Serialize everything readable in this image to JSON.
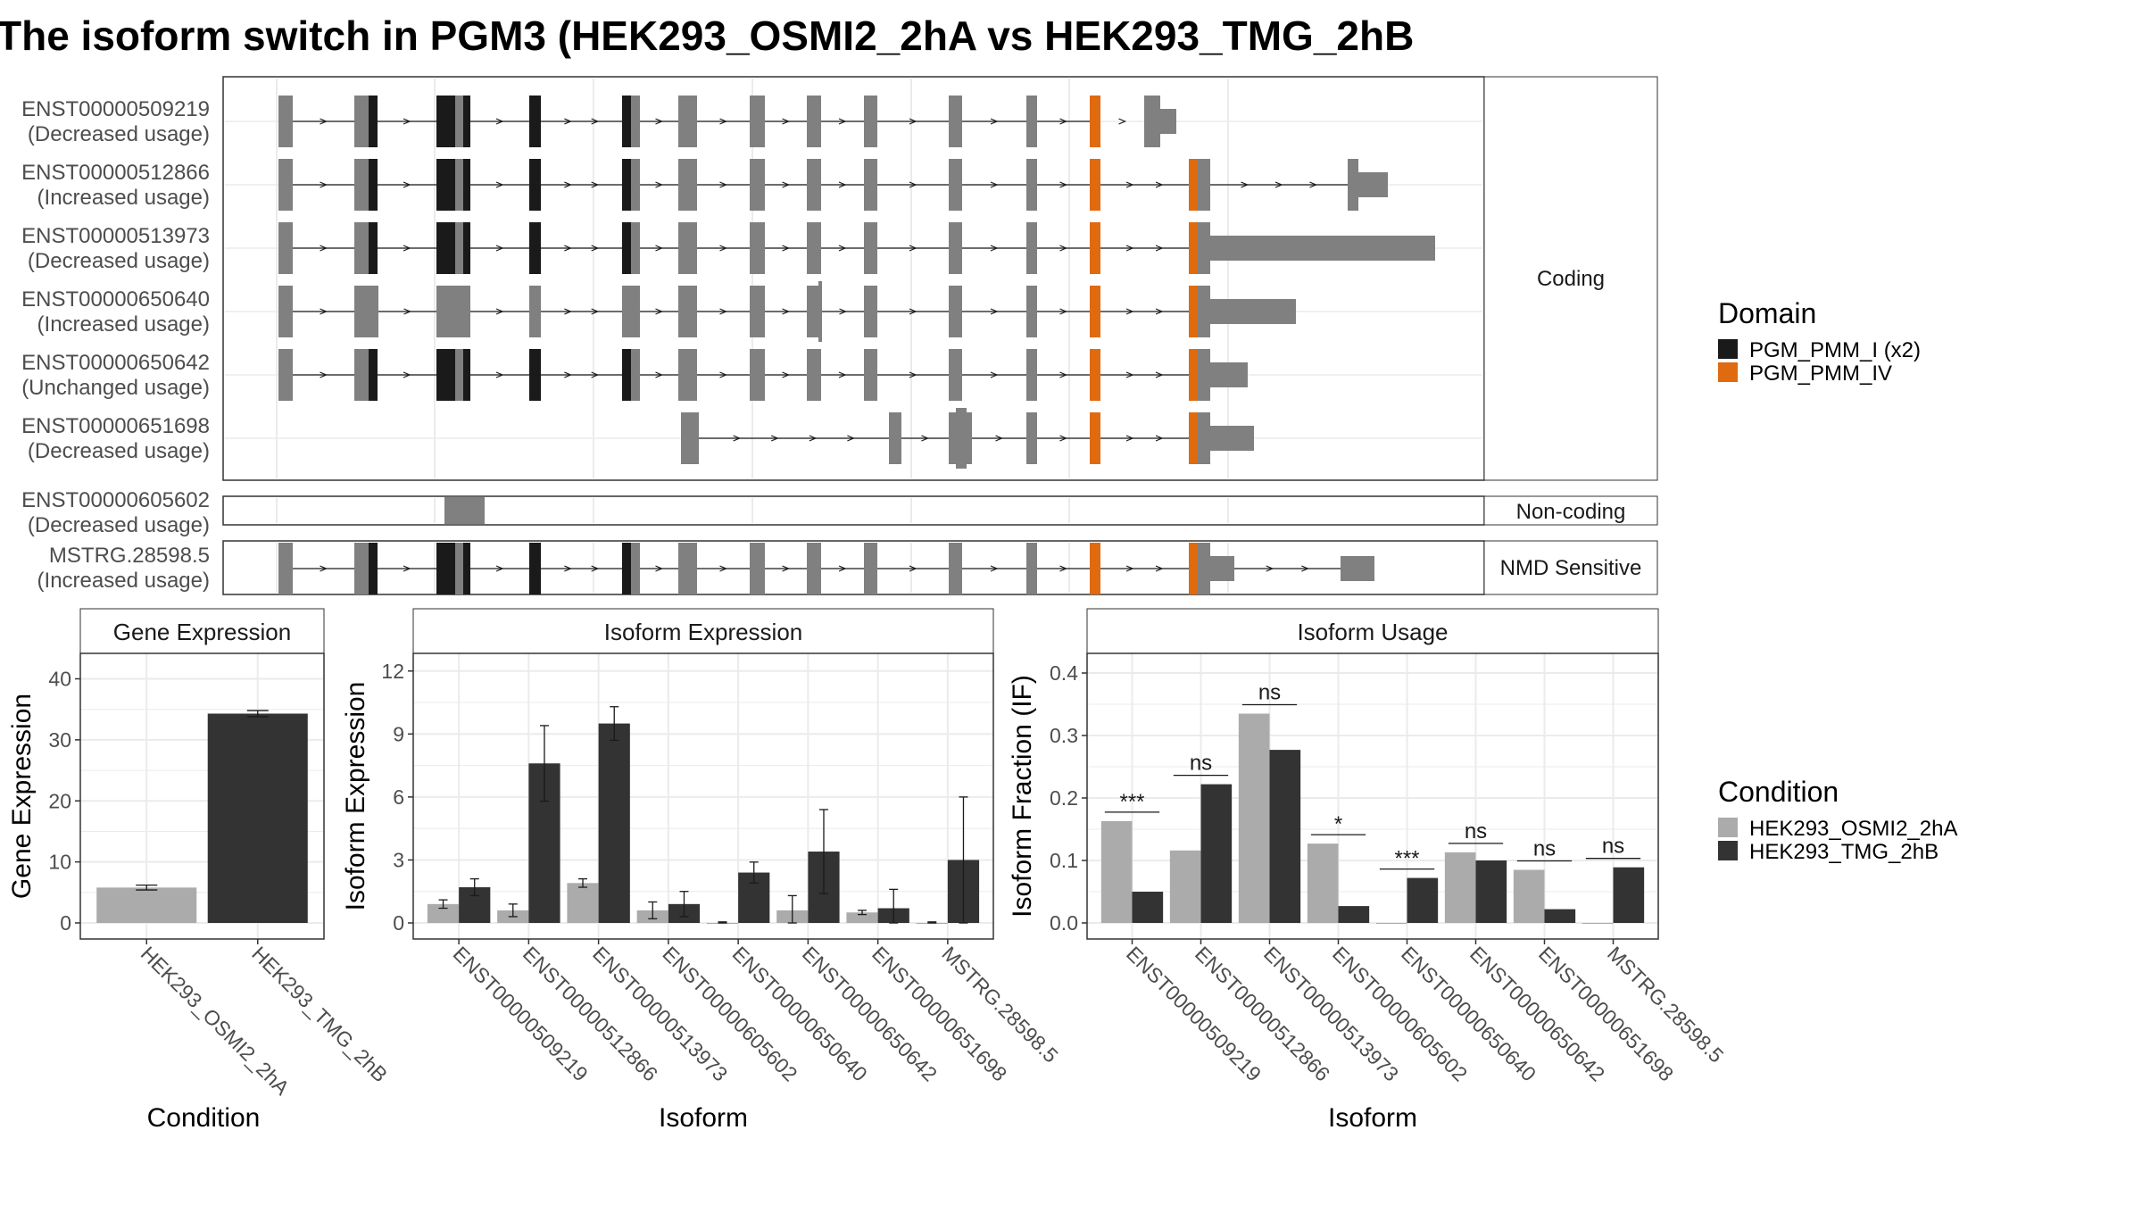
{
  "title": "The isoform switch in PGM3 (HEK293_OSMI2_2hA vs HEK293_TMG_2hB",
  "colors": {
    "exon": "#808080",
    "domain_pgm_pmm_i": "#1a1a1a",
    "domain_pgm_pmm_iv": "#e06a10",
    "cond_a": "#ababab",
    "cond_b": "#333333",
    "grid": "#ebebeb",
    "strip_border": "#333333"
  },
  "structure": {
    "panels": [
      "Coding",
      "Non-coding",
      "NMD Sensitive"
    ],
    "transcripts": [
      {
        "id": "ENST00000509219",
        "usage": "(Decreased usage)",
        "panel": "Coding"
      },
      {
        "id": "ENST00000512866",
        "usage": "(Increased usage)",
        "panel": "Coding"
      },
      {
        "id": "ENST00000513973",
        "usage": "(Decreased usage)",
        "panel": "Coding"
      },
      {
        "id": "ENST00000650640",
        "usage": "(Increased usage)",
        "panel": "Coding"
      },
      {
        "id": "ENST00000650642",
        "usage": "(Unchanged usage)",
        "panel": "Coding"
      },
      {
        "id": "ENST00000651698",
        "usage": "(Decreased usage)",
        "panel": "Coding"
      },
      {
        "id": "ENST00000605602",
        "usage": "(Decreased usage)",
        "panel": "Non-coding"
      },
      {
        "id": "MSTRG.28598.5",
        "usage": "(Increased usage)",
        "panel": "NMD Sensitive"
      }
    ]
  },
  "legend_domain": {
    "title": "Domain",
    "items": [
      {
        "label": "PGM_PMM_I (x2)",
        "color": "#1a1a1a"
      },
      {
        "label": "PGM_PMM_IV",
        "color": "#e06a10"
      }
    ]
  },
  "legend_condition": {
    "title": "Condition",
    "items": [
      {
        "label": "HEK293_OSMI2_2hA",
        "color": "#ababab"
      },
      {
        "label": "HEK293_TMG_2hB",
        "color": "#333333"
      }
    ]
  },
  "chart_data": [
    {
      "type": "bar",
      "title": "Gene Expression",
      "xlabel": "Condition",
      "ylabel": "Gene Expression",
      "categories": [
        "HEK293_OSMI2_2hA",
        "HEK293_TMG_2hB"
      ],
      "values": [
        5.8,
        34.3
      ],
      "errors": [
        0.4,
        0.5
      ],
      "ylim": [
        0,
        43
      ],
      "yticks": [
        0,
        10,
        20,
        30,
        40
      ]
    },
    {
      "type": "bar",
      "title": "Isoform Expression",
      "xlabel": "Isoform",
      "ylabel": "Isoform Expression",
      "categories": [
        "ENST00000509219",
        "ENST00000512866",
        "ENST00000513973",
        "ENST00000605602",
        "ENST00000650640",
        "ENST00000650642",
        "ENST00000651698",
        "MSTRG.28598.5"
      ],
      "series": [
        {
          "name": "HEK293_OSMI2_2hA",
          "values": [
            0.9,
            0.6,
            1.9,
            0.6,
            0.0,
            0.6,
            0.5,
            0.0
          ],
          "errors": [
            0.2,
            0.3,
            0.2,
            0.4,
            0.05,
            0.7,
            0.1,
            0.05
          ]
        },
        {
          "name": "HEK293_TMG_2hB",
          "values": [
            1.7,
            7.6,
            9.5,
            0.9,
            2.4,
            3.4,
            0.7,
            3.0
          ],
          "errors": [
            0.4,
            1.8,
            0.8,
            0.6,
            0.5,
            2.0,
            0.9,
            3.0
          ]
        }
      ],
      "ylim": [
        0,
        12.5
      ],
      "yticks": [
        0,
        3,
        6,
        9,
        12
      ]
    },
    {
      "type": "bar",
      "title": "Isoform Usage",
      "xlabel": "Isoform",
      "ylabel": "Isoform Fraction (IF)",
      "categories": [
        "ENST00000509219",
        "ENST00000512866",
        "ENST00000513973",
        "ENST00000605602",
        "ENST00000650640",
        "ENST00000650642",
        "ENST00000651698",
        "MSTRG.28598.5"
      ],
      "series": [
        {
          "name": "HEK293_OSMI2_2hA",
          "values": [
            0.163,
            0.116,
            0.335,
            0.127,
            0.0,
            0.113,
            0.085,
            0.0
          ]
        },
        {
          "name": "HEK293_TMG_2hB",
          "values": [
            0.05,
            0.222,
            0.277,
            0.027,
            0.072,
            0.1,
            0.022,
            0.089
          ]
        }
      ],
      "significance": [
        "***",
        "ns",
        "ns",
        "*",
        "***",
        "ns",
        "ns",
        "ns"
      ],
      "ylim": [
        0,
        0.42
      ],
      "yticks": [
        0.0,
        0.1,
        0.2,
        0.3,
        0.4
      ]
    }
  ]
}
